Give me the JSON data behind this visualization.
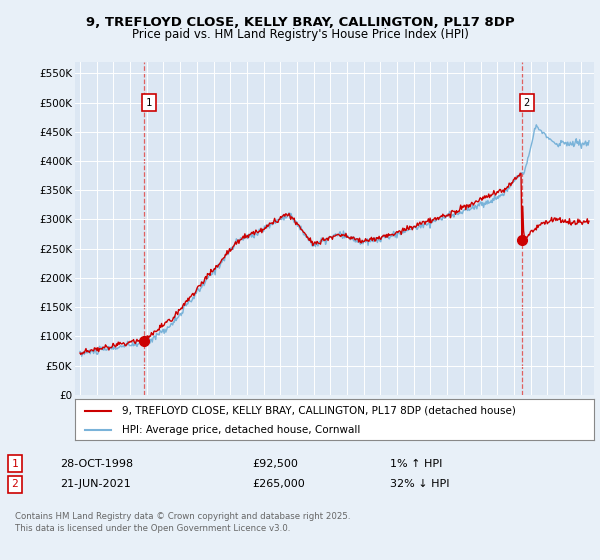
{
  "title_line1": "9, TREFLOYD CLOSE, KELLY BRAY, CALLINGTON, PL17 8DP",
  "title_line2": "Price paid vs. HM Land Registry's House Price Index (HPI)",
  "background_color": "#e8f0f8",
  "plot_bg_color": "#dce7f3",
  "ylim": [
    0,
    570000
  ],
  "yticks": [
    0,
    50000,
    100000,
    150000,
    200000,
    250000,
    300000,
    350000,
    400000,
    450000,
    500000,
    550000
  ],
  "ytick_labels": [
    "£0",
    "£50K",
    "£100K",
    "£150K",
    "£200K",
    "£250K",
    "£300K",
    "£350K",
    "£400K",
    "£450K",
    "£500K",
    "£550K"
  ],
  "xlim_left": 1994.7,
  "xlim_right": 2025.8,
  "sale1_x": 1998.83,
  "sale1_y": 92500,
  "sale1_label": "1",
  "sale2_x": 2021.47,
  "sale2_y": 265000,
  "sale2_label": "2",
  "vline1_x": 1998.83,
  "vline2_x": 2021.47,
  "legend_entry1": "9, TREFLOYD CLOSE, KELLY BRAY, CALLINGTON, PL17 8DP (detached house)",
  "legend_entry2": "HPI: Average price, detached house, Cornwall",
  "table_row1": [
    "1",
    "28-OCT-1998",
    "£92,500",
    "1% ↑ HPI"
  ],
  "table_row2": [
    "2",
    "21-JUN-2021",
    "£265,000",
    "32% ↓ HPI"
  ],
  "footer1": "Contains HM Land Registry data © Crown copyright and database right 2025.",
  "footer2": "This data is licensed under the Open Government Licence v3.0.",
  "hpi_color": "#7ab3d9",
  "sale_color": "#cc0000",
  "vline_color": "#e06060"
}
